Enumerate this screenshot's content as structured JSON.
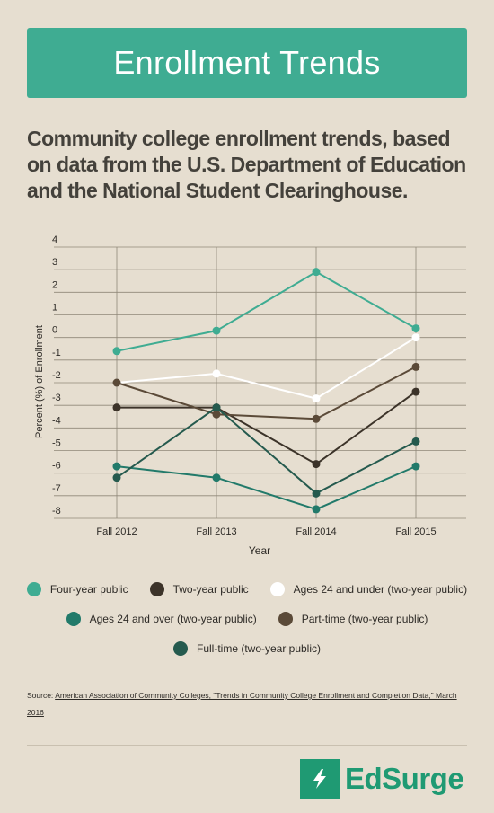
{
  "header": {
    "title": "Enrollment Trends"
  },
  "subtitle": "Community college enrollment trends, based on data from the U.S. Department of Education and the National Student Clearinghouse.",
  "chart_data": {
    "type": "line",
    "title": "",
    "xlabel": "Year",
    "ylabel": "Percent (%) of Enrollment",
    "categories": [
      "Fall 2012",
      "Fall 2013",
      "Fall 2014",
      "Fall 2015"
    ],
    "ylim": [
      -8,
      4
    ],
    "yticks": [
      4,
      3,
      2,
      1,
      0,
      -1,
      -2,
      -3,
      -4,
      -5,
      -6,
      -7,
      -8
    ],
    "grid": true,
    "legend_position": "bottom",
    "series": [
      {
        "name": "Four-year public",
        "color": "#3fac92",
        "values": [
          -0.6,
          0.3,
          2.9,
          0.4
        ]
      },
      {
        "name": "Two-year public",
        "color": "#3c3329",
        "values": [
          -3.1,
          -3.1,
          -5.6,
          -2.4
        ]
      },
      {
        "name": "Ages 24 and under (two-year public)",
        "color": "#ffffff",
        "values": [
          -2.0,
          -1.6,
          -2.7,
          0.0
        ]
      },
      {
        "name": "Ages 24 and over (two-year public)",
        "color": "#227a6a",
        "values": [
          -5.7,
          -6.2,
          -7.6,
          -5.7
        ]
      },
      {
        "name": "Part-time (two-year public)",
        "color": "#5b4a38",
        "values": [
          -2.0,
          -3.4,
          -3.6,
          -1.3
        ]
      },
      {
        "name": "Full-time (two-year public)",
        "color": "#255a4e",
        "values": [
          -6.2,
          -3.1,
          -6.9,
          -4.6
        ]
      }
    ]
  },
  "source": {
    "prefix": "Source: ",
    "link_text": "American Association of Community Colleges, \"Trends in Community College Enrollment and Completion Data,\" March 2016"
  },
  "brand": {
    "name": "EdSurge"
  }
}
